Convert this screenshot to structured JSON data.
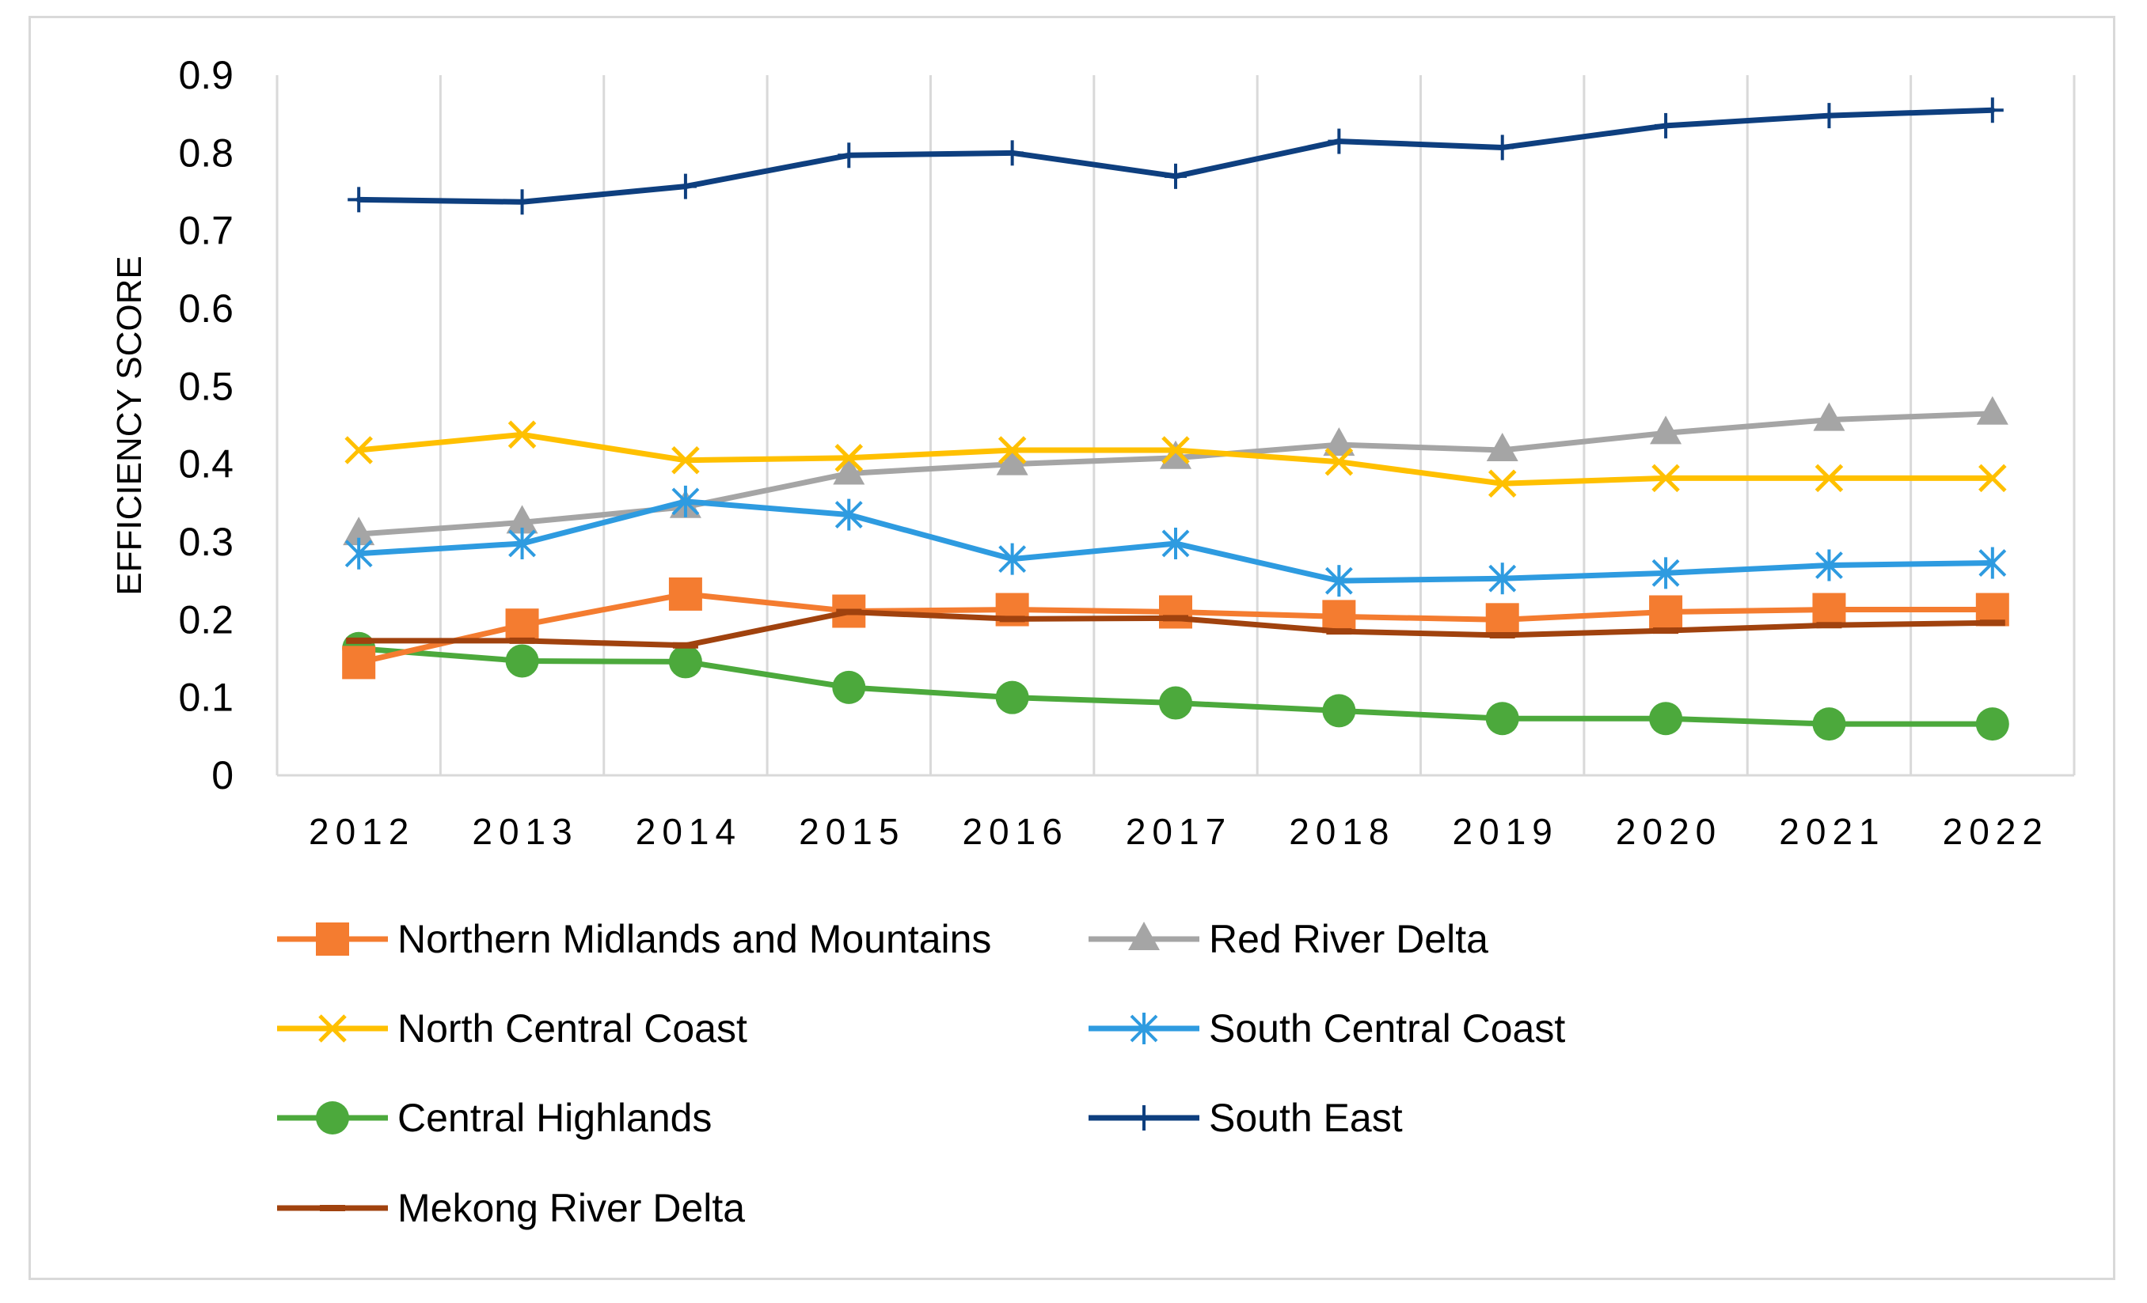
{
  "chart_data": {
    "type": "line",
    "title": "",
    "xlabel": "",
    "ylabel": "EFFICIENCY SCORE",
    "ylim": [
      0,
      0.9
    ],
    "y_ticks": [
      "0",
      "0.1",
      "0.2",
      "0.3",
      "0.4",
      "0.5",
      "0.6",
      "0.7",
      "0.8",
      "0.9"
    ],
    "categories": [
      "2012",
      "2013",
      "2014",
      "2015",
      "2016",
      "2017",
      "2018",
      "2019",
      "2020",
      "2021",
      "2022"
    ],
    "grid": "vertical",
    "legend_position": "bottom",
    "series": [
      {
        "name": "Northern Midlands and Mountains",
        "color": "#f47c30",
        "marker": "square",
        "values": [
          0.145,
          0.193,
          0.233,
          0.211,
          0.213,
          0.21,
          0.204,
          0.2,
          0.21,
          0.213,
          0.213
        ]
      },
      {
        "name": "Red River Delta",
        "color": "#a5a5a5",
        "marker": "triangle",
        "values": [
          0.31,
          0.325,
          0.345,
          0.388,
          0.4,
          0.408,
          0.425,
          0.418,
          0.44,
          0.457,
          0.465
        ]
      },
      {
        "name": "North Central Coast",
        "color": "#ffc000",
        "marker": "x",
        "values": [
          0.418,
          0.438,
          0.405,
          0.408,
          0.418,
          0.418,
          0.403,
          0.375,
          0.382,
          0.382,
          0.382
        ]
      },
      {
        "name": "South Central Coast",
        "color": "#2e9be0",
        "marker": "star",
        "values": [
          0.285,
          0.298,
          0.352,
          0.335,
          0.278,
          0.298,
          0.25,
          0.253,
          0.26,
          0.27,
          0.273
        ]
      },
      {
        "name": "Central Highlands",
        "color": "#4ca93c",
        "marker": "circle",
        "values": [
          0.163,
          0.147,
          0.146,
          0.113,
          0.1,
          0.093,
          0.083,
          0.073,
          0.073,
          0.066,
          0.066
        ]
      },
      {
        "name": "South East",
        "color": "#0e3f7f",
        "marker": "plus",
        "values": [
          0.74,
          0.737,
          0.757,
          0.797,
          0.8,
          0.77,
          0.815,
          0.807,
          0.835,
          0.848,
          0.855
        ]
      },
      {
        "name": "Mekong River Delta",
        "color": "#a0420e",
        "marker": "dash",
        "values": [
          0.173,
          0.173,
          0.167,
          0.21,
          0.201,
          0.202,
          0.185,
          0.18,
          0.186,
          0.193,
          0.196
        ]
      }
    ]
  }
}
